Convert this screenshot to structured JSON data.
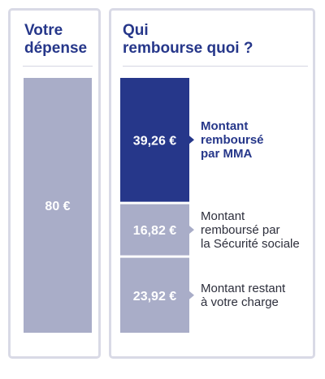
{
  "left_panel": {
    "title": [
      "Votre",
      "dépense"
    ]
  },
  "right_panel": {
    "title": [
      "Qui",
      "rembourse quoi ?"
    ]
  },
  "colors": {
    "mma": "#26378a",
    "light": "#a9adc8",
    "frame": "#d9dae6",
    "title": "#26378a"
  },
  "chart_data": {
    "type": "bar",
    "currency": "€",
    "total": {
      "value": 80,
      "label": "80 €"
    },
    "segments": [
      {
        "name": [
          "Montant",
          "remboursé",
          "par MMA"
        ],
        "value": 39.26,
        "label": "39,26 €",
        "emphasis": true,
        "color": "#26378a"
      },
      {
        "name": [
          "Montant",
          "remboursé par",
          "la Sécurité sociale"
        ],
        "value": 16.82,
        "label": "16,82 €",
        "emphasis": false,
        "color": "#a9adc8"
      },
      {
        "name": [
          "Montant restant",
          "à votre charge"
        ],
        "value": 23.92,
        "label": "23,92 €",
        "emphasis": false,
        "color": "#a9adc8"
      }
    ]
  }
}
